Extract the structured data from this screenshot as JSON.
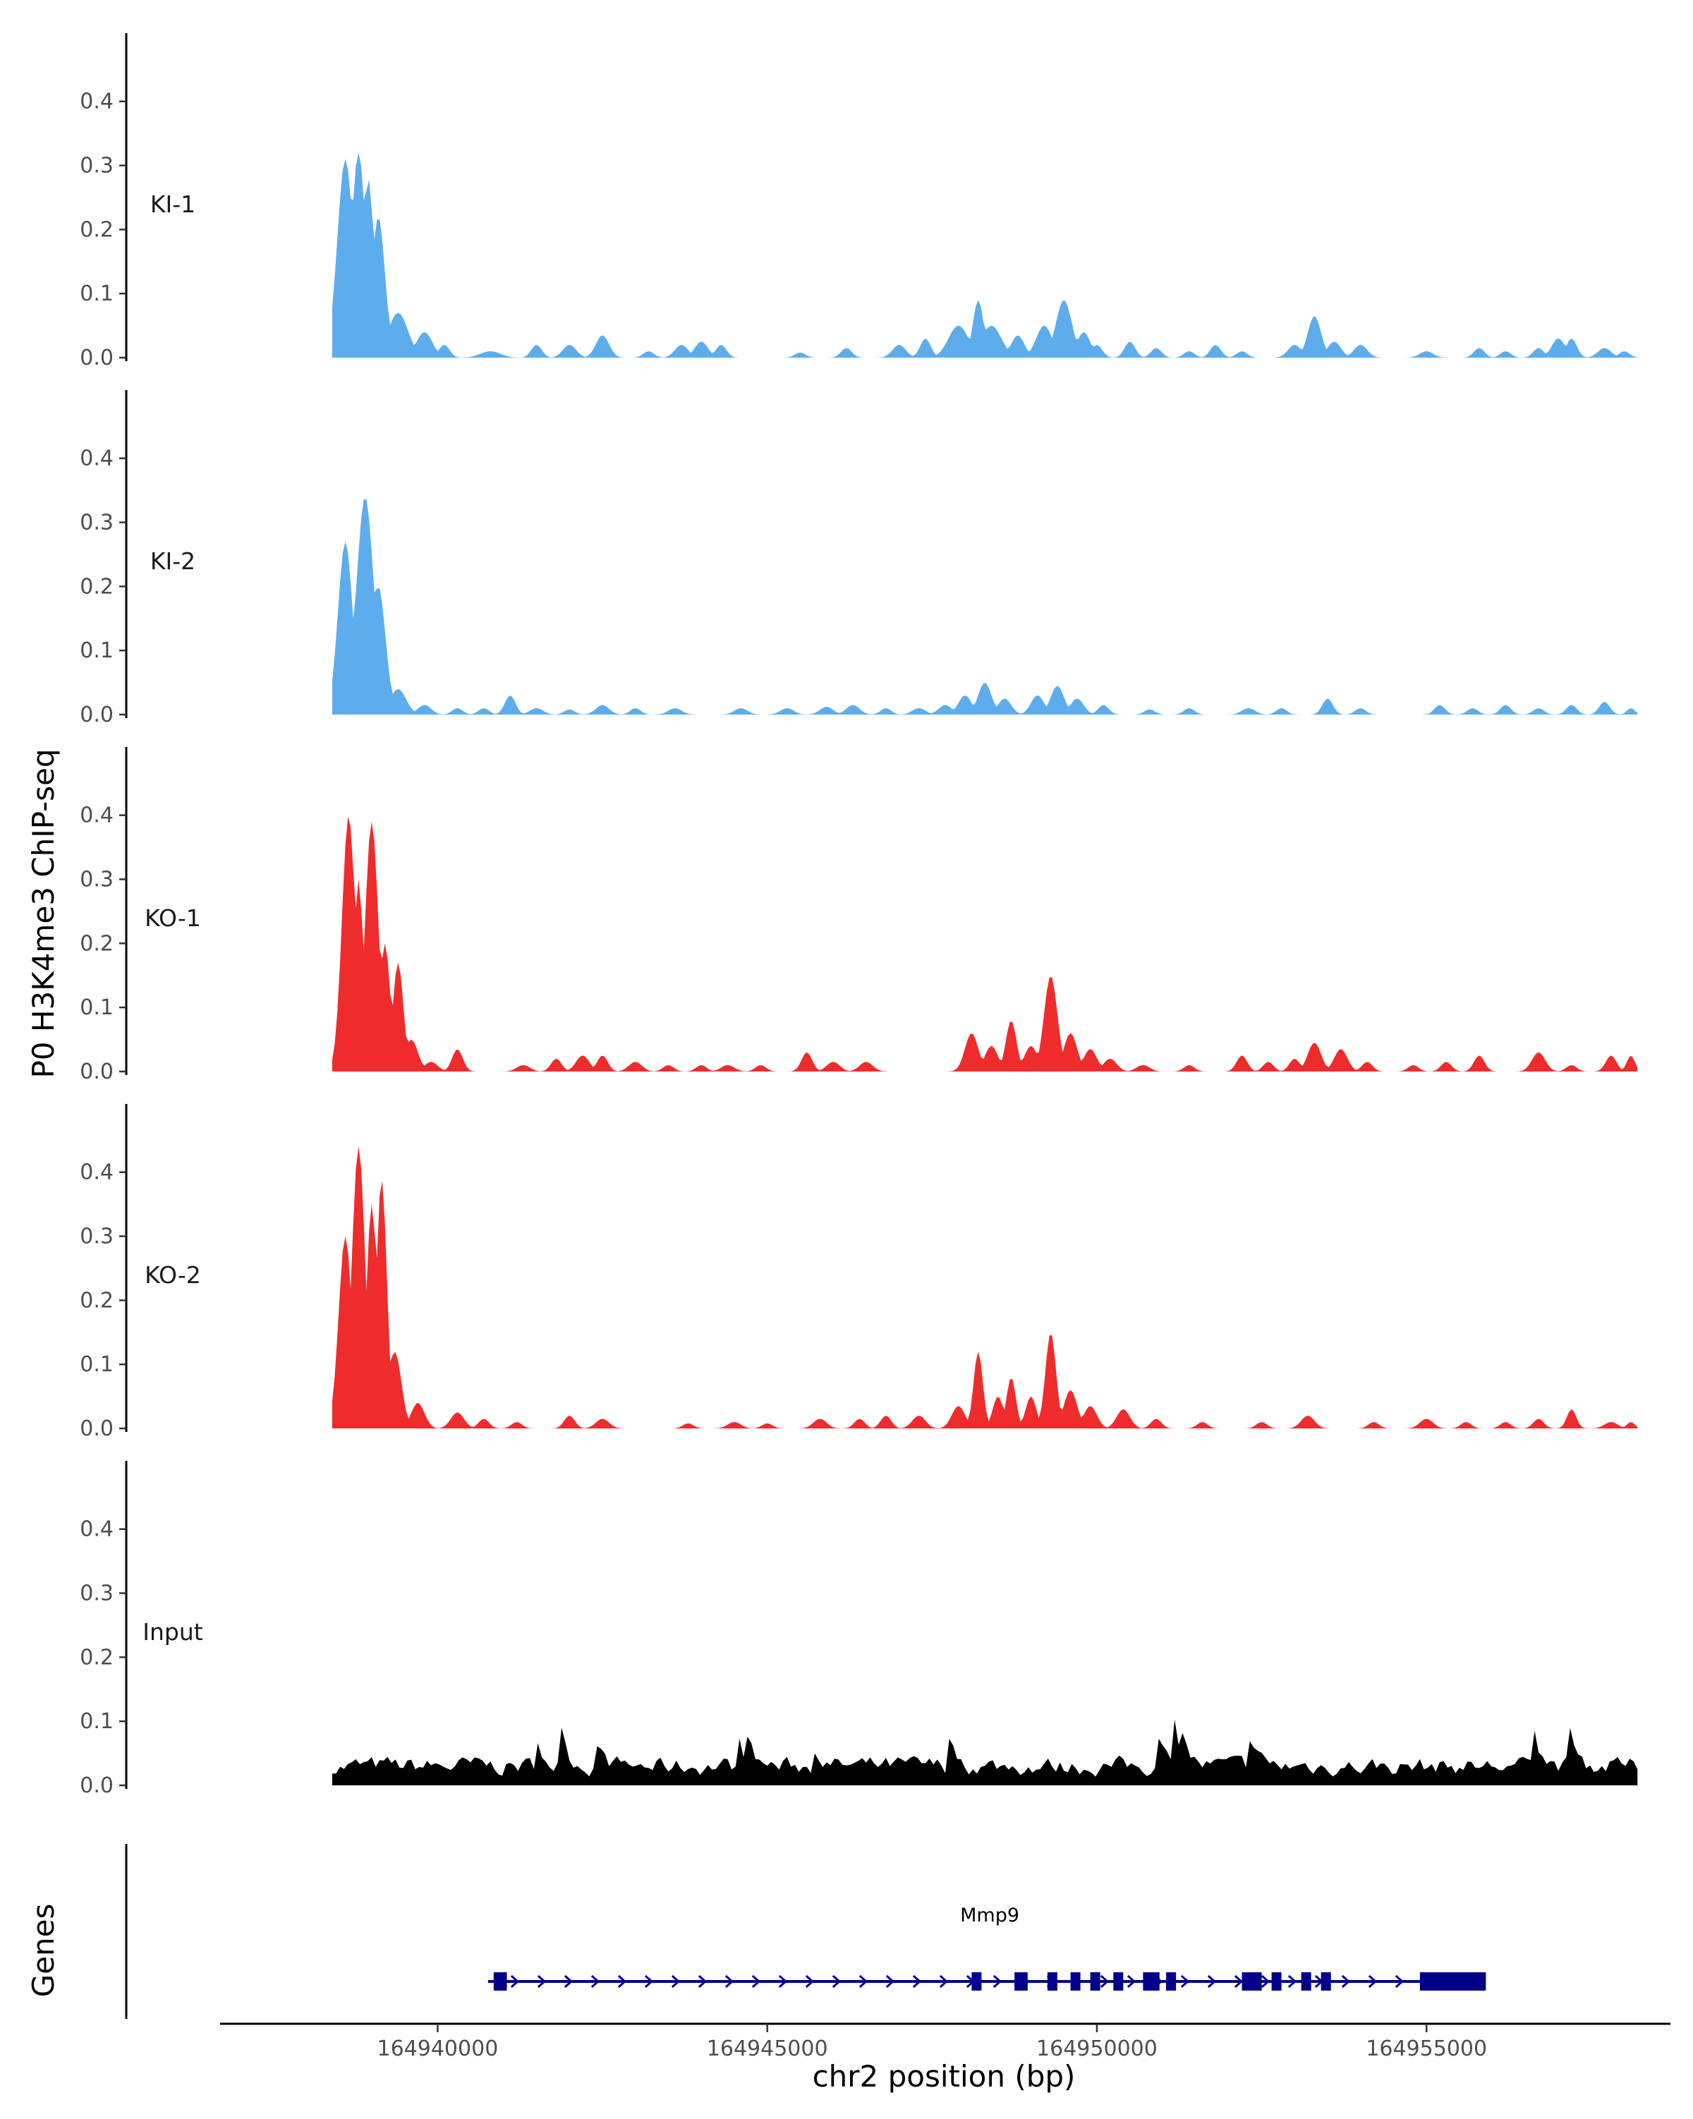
{
  "chart_data": {
    "type": "area",
    "ylabel": "P0 H3K4me3 ChIP-seq",
    "xlabel": "chr2 position (bp)",
    "ylim": [
      0,
      0.49
    ],
    "yticks": [
      "0.0",
      "0.1",
      "0.2",
      "0.3",
      "0.4"
    ],
    "xlim": [
      164936700,
      164958700
    ],
    "xticks": [
      {
        "value": 164940000,
        "label": "164940000"
      },
      {
        "value": 164945000,
        "label": "164945000"
      },
      {
        "value": 164950000,
        "label": "164950000"
      },
      {
        "value": 164955000,
        "label": "164955000"
      }
    ],
    "region": [
      164938400,
      164958200
    ],
    "tracks": [
      {
        "name": "KI-1",
        "color": "#5DADEC",
        "peaks": [
          [
            164938600,
            0.31,
            120
          ],
          [
            164938800,
            0.32,
            110
          ],
          [
            164938950,
            0.28,
            80
          ],
          [
            164939100,
            0.22,
            100
          ],
          [
            164939400,
            0.07,
            150
          ],
          [
            164939800,
            0.04,
            120
          ],
          [
            164940100,
            0.02,
            80
          ],
          [
            164940800,
            0.01,
            150
          ],
          [
            164941500,
            0.02,
            80
          ],
          [
            164942000,
            0.02,
            100
          ],
          [
            164942500,
            0.035,
            100
          ],
          [
            164943200,
            0.01,
            80
          ],
          [
            164943700,
            0.02,
            100
          ],
          [
            164944000,
            0.025,
            100
          ],
          [
            164944300,
            0.02,
            80
          ],
          [
            164945500,
            0.008,
            80
          ],
          [
            164946200,
            0.015,
            80
          ],
          [
            164947000,
            0.02,
            100
          ],
          [
            164947400,
            0.03,
            80
          ],
          [
            164947900,
            0.05,
            150
          ],
          [
            164948200,
            0.09,
            80
          ],
          [
            164948400,
            0.05,
            150
          ],
          [
            164948800,
            0.035,
            100
          ],
          [
            164949200,
            0.05,
            120
          ],
          [
            164949500,
            0.09,
            120
          ],
          [
            164949800,
            0.04,
            100
          ],
          [
            164950000,
            0.02,
            80
          ],
          [
            164950500,
            0.025,
            80
          ],
          [
            164950900,
            0.015,
            80
          ],
          [
            164951400,
            0.01,
            80
          ],
          [
            164951800,
            0.02,
            80
          ],
          [
            164952200,
            0.01,
            80
          ],
          [
            164953000,
            0.02,
            100
          ],
          [
            164953300,
            0.065,
            100
          ],
          [
            164953600,
            0.025,
            100
          ],
          [
            164954000,
            0.02,
            100
          ],
          [
            164955000,
            0.01,
            100
          ],
          [
            164955800,
            0.015,
            80
          ],
          [
            164956200,
            0.01,
            80
          ],
          [
            164956700,
            0.015,
            80
          ],
          [
            164957000,
            0.03,
            100
          ],
          [
            164957200,
            0.03,
            80
          ],
          [
            164957700,
            0.015,
            100
          ],
          [
            164958000,
            0.01,
            80
          ]
        ]
      },
      {
        "name": "KI-2",
        "color": "#5DADEC",
        "peaks": [
          [
            164938600,
            0.27,
            110
          ],
          [
            164938900,
            0.34,
            130
          ],
          [
            164939100,
            0.2,
            110
          ],
          [
            164939400,
            0.04,
            120
          ],
          [
            164939800,
            0.015,
            100
          ],
          [
            164940300,
            0.01,
            80
          ],
          [
            164940700,
            0.01,
            80
          ],
          [
            164941100,
            0.03,
            80
          ],
          [
            164941500,
            0.01,
            100
          ],
          [
            164942000,
            0.008,
            80
          ],
          [
            164942500,
            0.015,
            100
          ],
          [
            164943000,
            0.01,
            80
          ],
          [
            164943600,
            0.01,
            100
          ],
          [
            164944600,
            0.01,
            100
          ],
          [
            164945300,
            0.01,
            100
          ],
          [
            164945900,
            0.012,
            100
          ],
          [
            164946300,
            0.015,
            100
          ],
          [
            164946800,
            0.01,
            80
          ],
          [
            164947300,
            0.01,
            100
          ],
          [
            164947700,
            0.015,
            100
          ],
          [
            164948000,
            0.03,
            100
          ],
          [
            164948300,
            0.05,
            100
          ],
          [
            164948600,
            0.025,
            100
          ],
          [
            164949100,
            0.03,
            100
          ],
          [
            164949400,
            0.045,
            100
          ],
          [
            164949700,
            0.025,
            100
          ],
          [
            164950100,
            0.015,
            80
          ],
          [
            164950800,
            0.008,
            80
          ],
          [
            164951400,
            0.01,
            80
          ],
          [
            164952300,
            0.01,
            100
          ],
          [
            164952800,
            0.01,
            80
          ],
          [
            164953500,
            0.025,
            80
          ],
          [
            164954000,
            0.01,
            80
          ],
          [
            164955200,
            0.015,
            80
          ],
          [
            164955700,
            0.01,
            80
          ],
          [
            164956200,
            0.015,
            80
          ],
          [
            164956700,
            0.01,
            80
          ],
          [
            164957200,
            0.015,
            80
          ],
          [
            164957700,
            0.02,
            80
          ],
          [
            164958100,
            0.01,
            60
          ]
        ]
      },
      {
        "name": "KO-1",
        "color": "#EE2C2C",
        "peaks": [
          [
            164938650,
            0.4,
            100
          ],
          [
            164938800,
            0.3,
            70
          ],
          [
            164939000,
            0.39,
            100
          ],
          [
            164939200,
            0.2,
            80
          ],
          [
            164939400,
            0.17,
            80
          ],
          [
            164939600,
            0.05,
            100
          ],
          [
            164939900,
            0.015,
            100
          ],
          [
            164940300,
            0.035,
            80
          ],
          [
            164941300,
            0.01,
            100
          ],
          [
            164941800,
            0.02,
            80
          ],
          [
            164942200,
            0.025,
            100
          ],
          [
            164942500,
            0.025,
            80
          ],
          [
            164943000,
            0.015,
            100
          ],
          [
            164943500,
            0.01,
            80
          ],
          [
            164944000,
            0.01,
            80
          ],
          [
            164944400,
            0.01,
            100
          ],
          [
            164944900,
            0.01,
            80
          ],
          [
            164945600,
            0.03,
            80
          ],
          [
            164946000,
            0.015,
            100
          ],
          [
            164946500,
            0.015,
            100
          ],
          [
            164948100,
            0.06,
            100
          ],
          [
            164948400,
            0.04,
            100
          ],
          [
            164948700,
            0.08,
            80
          ],
          [
            164949000,
            0.04,
            100
          ],
          [
            164949300,
            0.15,
            100
          ],
          [
            164949600,
            0.06,
            100
          ],
          [
            164949900,
            0.035,
            100
          ],
          [
            164950200,
            0.02,
            100
          ],
          [
            164950700,
            0.01,
            100
          ],
          [
            164951400,
            0.01,
            80
          ],
          [
            164952200,
            0.025,
            80
          ],
          [
            164952600,
            0.015,
            80
          ],
          [
            164953000,
            0.02,
            80
          ],
          [
            164953300,
            0.045,
            100
          ],
          [
            164953700,
            0.035,
            100
          ],
          [
            164954100,
            0.015,
            80
          ],
          [
            164954800,
            0.01,
            80
          ],
          [
            164955300,
            0.015,
            80
          ],
          [
            164955800,
            0.025,
            80
          ],
          [
            164956700,
            0.03,
            100
          ],
          [
            164957200,
            0.01,
            80
          ],
          [
            164957800,
            0.025,
            80
          ],
          [
            164958100,
            0.025,
            60
          ]
        ]
      },
      {
        "name": "KO-2",
        "color": "#EE2C2C",
        "peaks": [
          [
            164938600,
            0.3,
            100
          ],
          [
            164938800,
            0.44,
            100
          ],
          [
            164939000,
            0.35,
            80
          ],
          [
            164939150,
            0.39,
            80
          ],
          [
            164939350,
            0.12,
            100
          ],
          [
            164939700,
            0.04,
            100
          ],
          [
            164940300,
            0.025,
            100
          ],
          [
            164940700,
            0.015,
            80
          ],
          [
            164941200,
            0.01,
            80
          ],
          [
            164942000,
            0.02,
            80
          ],
          [
            164942500,
            0.015,
            100
          ],
          [
            164943800,
            0.008,
            80
          ],
          [
            164944500,
            0.01,
            100
          ],
          [
            164945000,
            0.008,
            80
          ],
          [
            164945800,
            0.015,
            100
          ],
          [
            164946400,
            0.015,
            80
          ],
          [
            164946800,
            0.02,
            80
          ],
          [
            164947300,
            0.02,
            100
          ],
          [
            164947900,
            0.035,
            100
          ],
          [
            164948200,
            0.12,
            70
          ],
          [
            164948500,
            0.05,
            80
          ],
          [
            164948700,
            0.08,
            70
          ],
          [
            164949000,
            0.05,
            80
          ],
          [
            164949300,
            0.15,
            80
          ],
          [
            164949600,
            0.06,
            100
          ],
          [
            164949900,
            0.035,
            100
          ],
          [
            164950400,
            0.03,
            100
          ],
          [
            164950900,
            0.015,
            80
          ],
          [
            164951600,
            0.01,
            80
          ],
          [
            164952500,
            0.01,
            80
          ],
          [
            164953200,
            0.02,
            100
          ],
          [
            164954200,
            0.01,
            80
          ],
          [
            164955000,
            0.015,
            100
          ],
          [
            164955600,
            0.01,
            80
          ],
          [
            164956200,
            0.01,
            80
          ],
          [
            164956700,
            0.015,
            80
          ],
          [
            164957200,
            0.03,
            70
          ],
          [
            164957800,
            0.01,
            100
          ],
          [
            164958100,
            0.01,
            60
          ]
        ]
      },
      {
        "name": "Input",
        "color": "#000000",
        "noise": {
          "base": 0.03,
          "amp": 0.026,
          "seed": 7,
          "step": 60
        }
      }
    ],
    "genes": [
      {
        "name": "Mmp9",
        "strand": "+",
        "start": 164940850,
        "end": 164955900,
        "color": "#00008B",
        "exons": [
          [
            164940850,
            164941050
          ],
          [
            164948100,
            164948250
          ],
          [
            164948750,
            164948950
          ],
          [
            164949250,
            164949400
          ],
          [
            164949600,
            164949750
          ],
          [
            164949900,
            164950050
          ],
          [
            164950250,
            164950400
          ],
          [
            164950700,
            164950950
          ],
          [
            164951050,
            164951200
          ],
          [
            164952200,
            164952500
          ],
          [
            164952650,
            164952800
          ],
          [
            164953100,
            164953250
          ],
          [
            164953400,
            164953550
          ],
          [
            164954900,
            164955900
          ]
        ]
      }
    ],
    "genes_label": "Genes"
  }
}
